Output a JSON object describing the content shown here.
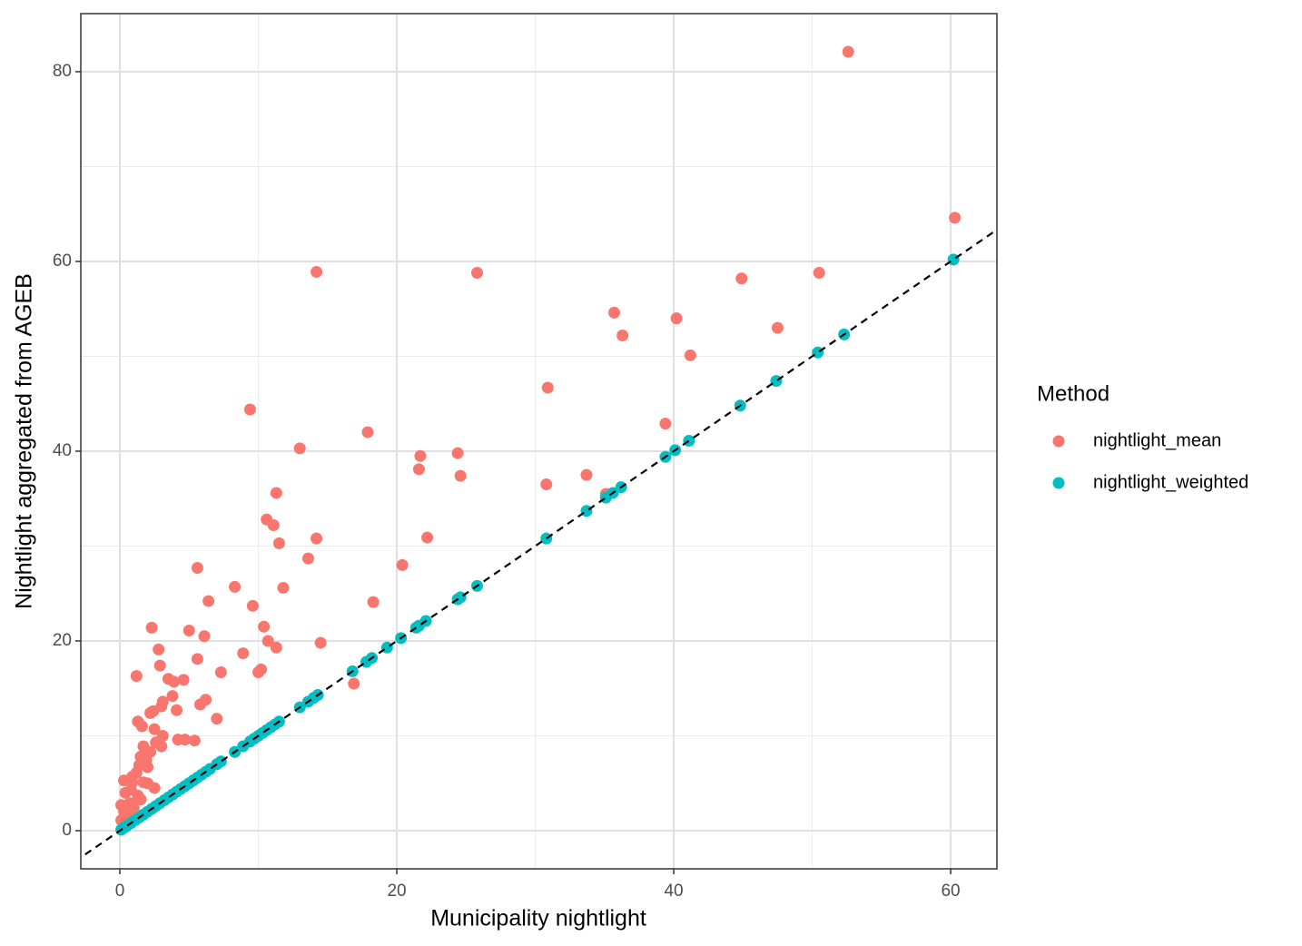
{
  "chart_data": {
    "type": "scatter",
    "x_label": "Municipality nightlight",
    "y_label": "Nightlight aggregated from AGEB",
    "legend_title": "Method",
    "legend_position": "right",
    "grid": true,
    "identity_line": true,
    "xlim": [
      -2.82,
      63.34
    ],
    "ylim": [
      -4.02,
      86.12
    ],
    "xticks": [
      0,
      20,
      40,
      60
    ],
    "yticks": [
      0,
      20,
      40,
      60,
      80
    ],
    "series": [
      {
        "name": "nightlight_mean",
        "color": "#F8766D",
        "x": [
          52.6,
          60.3,
          14.2,
          25.8,
          44.9,
          50.5,
          35.7,
          40.2,
          36.3,
          47.5,
          41.2,
          30.9,
          9.4,
          39.4,
          17.9,
          13.0,
          21.7,
          24.4,
          21.6,
          24.6,
          33.7,
          30.8,
          35.1,
          11.3,
          10.6,
          11.1,
          11.5,
          14.2,
          22.2,
          13.6,
          20.4,
          5.6,
          8.3,
          11.8,
          6.4,
          18.3,
          9.6,
          2.3,
          5.0,
          10.4,
          6.1,
          10.7,
          11.3,
          14.5,
          2.8,
          8.9,
          5.6,
          2.9,
          7.3,
          10.2,
          10.0,
          1.2,
          3.5,
          4.6,
          3.9,
          16.9,
          3.8,
          6.2,
          5.8,
          3.1,
          3.0,
          4.1,
          2.2,
          2.4,
          7.0,
          1.3,
          1.6,
          2.5,
          3.1,
          4.2,
          4.7,
          5.4,
          2.6,
          1.7,
          3.0,
          2.2,
          1.5,
          1.9,
          1.4,
          2.0,
          1.2,
          0.9,
          0.3,
          0.9,
          1.7,
          2.0,
          2.5,
          0.4,
          0.8,
          1.3,
          1.5,
          0.1,
          0.7,
          1.0,
          0.3,
          0.7,
          0.1,
          0.3
        ],
        "values": [
          82.1,
          64.6,
          58.9,
          58.8,
          58.2,
          58.8,
          54.6,
          54.0,
          52.2,
          53.0,
          50.1,
          46.7,
          44.4,
          42.9,
          42.0,
          40.3,
          39.5,
          39.8,
          38.1,
          37.4,
          37.5,
          36.5,
          35.5,
          35.6,
          32.8,
          32.2,
          30.3,
          30.8,
          30.9,
          28.7,
          28.0,
          27.7,
          25.7,
          25.6,
          24.2,
          24.1,
          23.7,
          21.4,
          21.1,
          21.5,
          20.5,
          20.0,
          19.3,
          19.8,
          19.1,
          18.7,
          18.1,
          17.4,
          16.7,
          17.0,
          16.7,
          16.3,
          16.0,
          15.9,
          15.7,
          15.5,
          14.2,
          13.8,
          13.3,
          13.6,
          13.1,
          12.7,
          12.4,
          12.6,
          11.8,
          11.5,
          11.0,
          10.7,
          10.0,
          9.6,
          9.6,
          9.5,
          9.3,
          8.9,
          8.9,
          8.3,
          7.8,
          7.4,
          6.9,
          6.7,
          6.1,
          5.7,
          5.3,
          5.1,
          5.1,
          5.0,
          4.5,
          4.0,
          4.3,
          3.7,
          3.3,
          2.7,
          2.9,
          2.4,
          2.0,
          1.8,
          1.1,
          0.7
        ]
      },
      {
        "name": "nightlight_weighted",
        "color": "#00BFC4",
        "x": [
          60.2,
          52.3,
          50.4,
          47.4,
          44.8,
          41.1,
          40.1,
          39.4,
          36.2,
          35.6,
          35.1,
          33.7,
          30.8,
          25.8,
          24.6,
          24.4,
          22.1,
          21.6,
          21.4,
          20.3,
          19.3,
          18.2,
          17.8,
          16.8,
          14.3,
          14.0,
          13.6,
          13.0,
          11.5,
          11.2,
          10.9,
          10.6,
          10.3,
          10.0,
          9.7,
          9.4,
          8.9,
          8.3,
          7.3,
          7.0,
          6.5,
          6.2,
          5.9,
          5.6,
          5.3,
          5.0,
          4.7,
          4.4,
          4.1,
          3.8,
          3.5,
          3.2,
          2.9,
          2.6,
          2.3,
          2.0,
          1.7,
          1.4,
          1.1,
          0.8,
          0.5,
          0.3,
          0.1
        ],
        "values": [
          60.2,
          52.3,
          50.4,
          47.4,
          44.8,
          41.1,
          40.1,
          39.4,
          36.2,
          35.6,
          35.1,
          33.7,
          30.8,
          25.8,
          24.6,
          24.4,
          22.1,
          21.6,
          21.4,
          20.3,
          19.3,
          18.2,
          17.8,
          16.8,
          14.3,
          14.0,
          13.6,
          13.0,
          11.5,
          11.2,
          10.9,
          10.6,
          10.3,
          10.0,
          9.7,
          9.4,
          8.9,
          8.3,
          7.3,
          7.0,
          6.5,
          6.2,
          5.9,
          5.6,
          5.3,
          5.0,
          4.7,
          4.4,
          4.1,
          3.8,
          3.5,
          3.2,
          2.9,
          2.6,
          2.3,
          2.0,
          1.7,
          1.4,
          1.1,
          0.8,
          0.5,
          0.3,
          0.1
        ]
      }
    ]
  }
}
